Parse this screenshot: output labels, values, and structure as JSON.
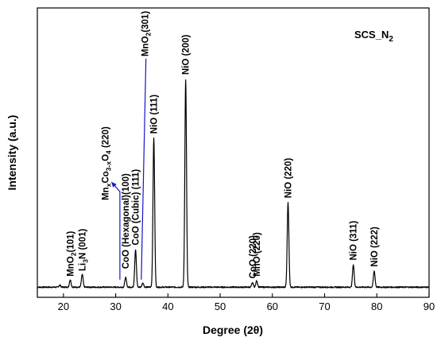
{
  "chart_data": {
    "type": "line",
    "title": "",
    "xlabel": "Degree (2θ)",
    "ylabel": "Intensity (a.u.)",
    "xlim": [
      15,
      90
    ],
    "ylim": [
      0,
      1
    ],
    "xticks": [
      20,
      30,
      40,
      50,
      60,
      70,
      80,
      90
    ],
    "xtick_labels": [
      "20",
      "30",
      "40",
      "50",
      "60",
      "70",
      "80",
      "90"
    ],
    "sample_label": {
      "main": "SCS_N",
      "sub": "2"
    },
    "grid": false,
    "series_color": "#000000",
    "arrow_color": "#1515c8",
    "baseline": 0.025,
    "peaks": [
      {
        "x": 19.3,
        "y": 0.035
      },
      {
        "x": 21.3,
        "y": 0.06
      },
      {
        "x": 23.6,
        "y": 0.085
      },
      {
        "x": 31.9,
        "y": 0.07
      },
      {
        "x": 33.8,
        "y": 0.2
      },
      {
        "x": 35.2,
        "y": 0.045
      },
      {
        "x": 37.3,
        "y": 0.72
      },
      {
        "x": 43.4,
        "y": 0.99
      },
      {
        "x": 56.2,
        "y": 0.045
      },
      {
        "x": 57.0,
        "y": 0.055
      },
      {
        "x": 63.0,
        "y": 0.42
      },
      {
        "x": 75.5,
        "y": 0.13
      },
      {
        "x": 79.5,
        "y": 0.1
      }
    ],
    "annotations": [
      {
        "parts": [
          [
            "MnO",
            "n"
          ],
          [
            "2",
            "sub"
          ],
          [
            "(101)",
            "n"
          ]
        ],
        "x": 21.3,
        "y": 0.075
      },
      {
        "parts": [
          [
            "Li",
            "n"
          ],
          [
            "3",
            "sub"
          ],
          [
            "N (001)",
            "n"
          ]
        ],
        "x": 23.6,
        "y": 0.1
      },
      {
        "parts": [
          [
            "CoO (Hexagonal)(100)",
            "n"
          ]
        ],
        "x": 31.9,
        "y": 0.11
      },
      {
        "parts": [
          [
            "CoO (Cubic) (111)",
            "n"
          ]
        ],
        "x": 33.8,
        "y": 0.22
      },
      {
        "parts": [
          [
            "NiO (111)",
            "n"
          ]
        ],
        "x": 37.3,
        "y": 0.74
      },
      {
        "parts": [
          [
            "NiO (200)",
            "n"
          ]
        ],
        "x": 43.4,
        "y": 1.015
      },
      {
        "parts": [
          [
            "CoO (220)",
            "n"
          ]
        ],
        "x": 56.2,
        "y": 0.065
      },
      {
        "parts": [
          [
            "MnO (220)",
            "n"
          ]
        ],
        "x": 57.0,
        "y": 0.075
      },
      {
        "parts": [
          [
            "NiO (220)",
            "n"
          ]
        ],
        "x": 63.0,
        "y": 0.44
      },
      {
        "parts": [
          [
            "NiO (311)",
            "n"
          ]
        ],
        "x": 75.5,
        "y": 0.15
      },
      {
        "parts": [
          [
            "NiO (222)",
            "n"
          ]
        ],
        "x": 79.5,
        "y": 0.12
      },
      {
        "parts": [
          [
            "MnO",
            "n"
          ],
          [
            "2",
            "sub"
          ],
          [
            "(301)",
            "n"
          ]
        ],
        "x": 35.6,
        "y": 1.1
      },
      {
        "parts": [
          [
            "Mn",
            "n"
          ],
          [
            "x",
            "sub"
          ],
          [
            "Co",
            "n"
          ],
          [
            "3-x",
            "sub"
          ],
          [
            "O",
            "n"
          ],
          [
            "4",
            "sub"
          ],
          [
            "   (220)",
            "n"
          ]
        ],
        "x": 28.0,
        "y": 0.43
      }
    ],
    "arrows": [
      {
        "from": [
          30.8,
          0.06
        ],
        "to": [
          30.8,
          0.47
        ],
        "head": [
          29.2,
          0.515
        ]
      },
      {
        "from": [
          34.9,
          0.06
        ],
        "to": [
          35.8,
          1.09
        ]
      }
    ]
  }
}
